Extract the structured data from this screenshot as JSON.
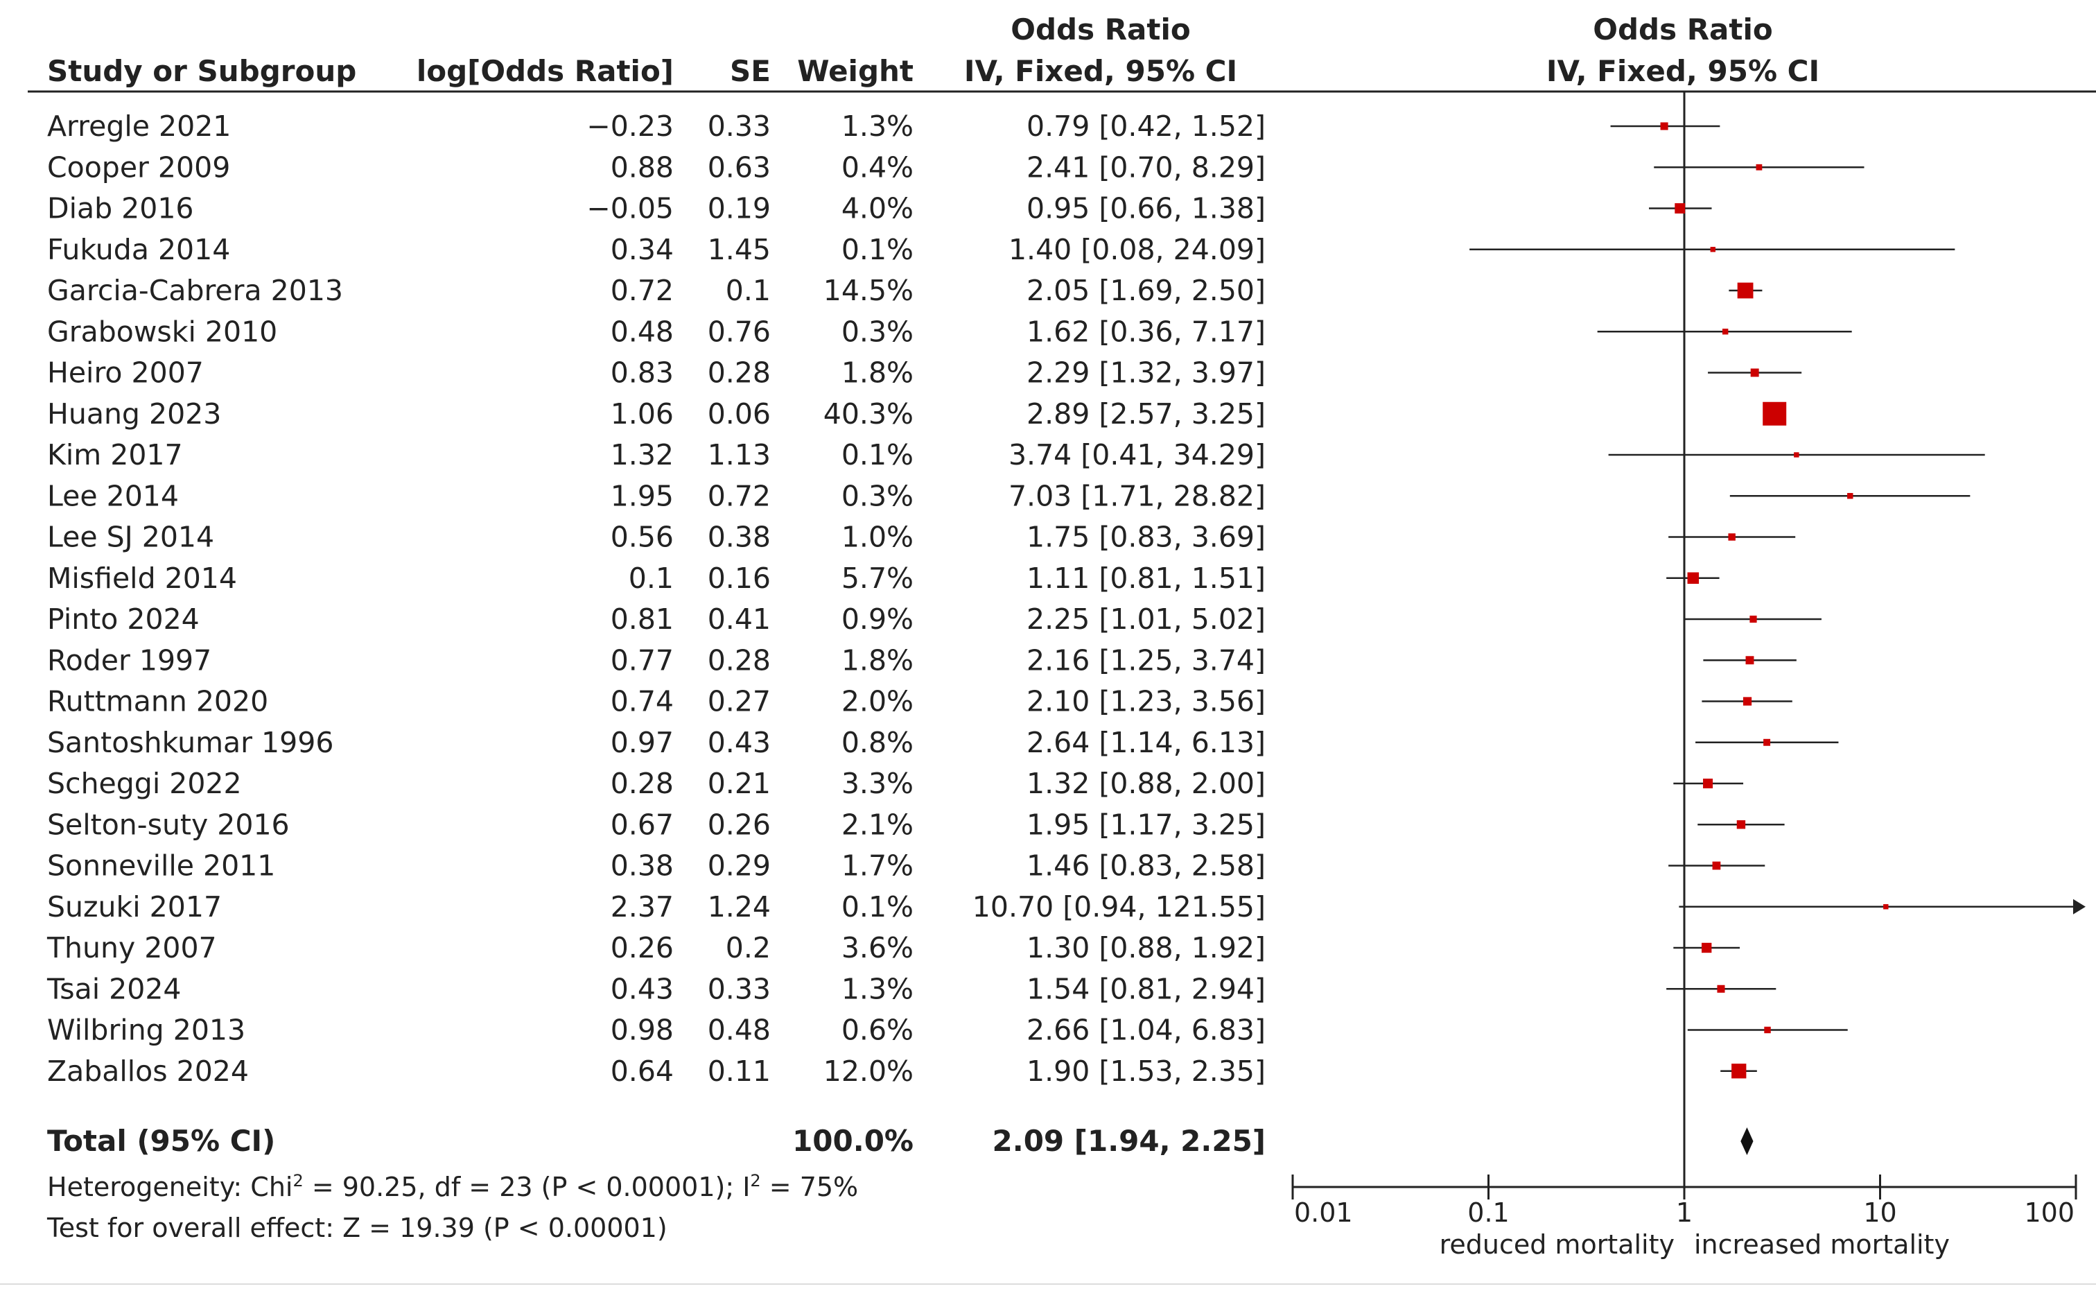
{
  "chart_data": {
    "type": "forest",
    "headers": {
      "study": "Study or Subgroup",
      "log_or": "log[Odds Ratio]",
      "se": "SE",
      "weight": "Weight",
      "or_line1": "Odds Ratio",
      "or_line2": "IV, Fixed, 95% CI",
      "plot_line1": "Odds Ratio",
      "plot_line2": "IV, Fixed, 95% CI"
    },
    "studies": [
      {
        "name": "Arregle 2021",
        "log_or": "−0.23",
        "se": "0.33",
        "weight": "1.3%",
        "or_text": "0.79 [0.42, 1.52]",
        "or": 0.79,
        "lo": 0.42,
        "hi": 1.52,
        "w": 1.3
      },
      {
        "name": "Cooper 2009",
        "log_or": "0.88",
        "se": "0.63",
        "weight": "0.4%",
        "or_text": "2.41 [0.70, 8.29]",
        "or": 2.41,
        "lo": 0.7,
        "hi": 8.29,
        "w": 0.4
      },
      {
        "name": "Diab 2016",
        "log_or": "−0.05",
        "se": "0.19",
        "weight": "4.0%",
        "or_text": "0.95 [0.66, 1.38]",
        "or": 0.95,
        "lo": 0.66,
        "hi": 1.38,
        "w": 4.0
      },
      {
        "name": "Fukuda 2014",
        "log_or": "0.34",
        "se": "1.45",
        "weight": "0.1%",
        "or_text": "1.40 [0.08, 24.09]",
        "or": 1.4,
        "lo": 0.08,
        "hi": 24.09,
        "w": 0.1
      },
      {
        "name": "Garcia-Cabrera 2013",
        "log_or": "0.72",
        "se": "0.1",
        "weight": "14.5%",
        "or_text": "2.05 [1.69, 2.50]",
        "or": 2.05,
        "lo": 1.69,
        "hi": 2.5,
        "w": 14.5
      },
      {
        "name": "Grabowski 2010",
        "log_or": "0.48",
        "se": "0.76",
        "weight": "0.3%",
        "or_text": "1.62 [0.36, 7.17]",
        "or": 1.62,
        "lo": 0.36,
        "hi": 7.17,
        "w": 0.3
      },
      {
        "name": "Heiro 2007",
        "log_or": "0.83",
        "se": "0.28",
        "weight": "1.8%",
        "or_text": "2.29 [1.32, 3.97]",
        "or": 2.29,
        "lo": 1.32,
        "hi": 3.97,
        "w": 1.8
      },
      {
        "name": "Huang 2023",
        "log_or": "1.06",
        "se": "0.06",
        "weight": "40.3%",
        "or_text": "2.89 [2.57, 3.25]",
        "or": 2.89,
        "lo": 2.57,
        "hi": 3.25,
        "w": 40.3
      },
      {
        "name": "Kim 2017",
        "log_or": "1.32",
        "se": "1.13",
        "weight": "0.1%",
        "or_text": "3.74 [0.41, 34.29]",
        "or": 3.74,
        "lo": 0.41,
        "hi": 34.29,
        "w": 0.1
      },
      {
        "name": "Lee 2014",
        "log_or": "1.95",
        "se": "0.72",
        "weight": "0.3%",
        "or_text": "7.03 [1.71, 28.82]",
        "or": 7.03,
        "lo": 1.71,
        "hi": 28.82,
        "w": 0.3
      },
      {
        "name": "Lee SJ 2014",
        "log_or": "0.56",
        "se": "0.38",
        "weight": "1.0%",
        "or_text": "1.75 [0.83, 3.69]",
        "or": 1.75,
        "lo": 0.83,
        "hi": 3.69,
        "w": 1.0
      },
      {
        "name": "Misfield 2014",
        "log_or": "0.1",
        "se": "0.16",
        "weight": "5.7%",
        "or_text": "1.11 [0.81, 1.51]",
        "or": 1.11,
        "lo": 0.81,
        "hi": 1.51,
        "w": 5.7
      },
      {
        "name": "Pinto 2024",
        "log_or": "0.81",
        "se": "0.41",
        "weight": "0.9%",
        "or_text": "2.25 [1.01, 5.02]",
        "or": 2.25,
        "lo": 1.01,
        "hi": 5.02,
        "w": 0.9
      },
      {
        "name": "Roder 1997",
        "log_or": "0.77",
        "se": "0.28",
        "weight": "1.8%",
        "or_text": "2.16 [1.25, 3.74]",
        "or": 2.16,
        "lo": 1.25,
        "hi": 3.74,
        "w": 1.8
      },
      {
        "name": "Ruttmann 2020",
        "log_or": "0.74",
        "se": "0.27",
        "weight": "2.0%",
        "or_text": "2.10 [1.23, 3.56]",
        "or": 2.1,
        "lo": 1.23,
        "hi": 3.56,
        "w": 2.0
      },
      {
        "name": "Santoshkumar 1996",
        "log_or": "0.97",
        "se": "0.43",
        "weight": "0.8%",
        "or_text": "2.64 [1.14, 6.13]",
        "or": 2.64,
        "lo": 1.14,
        "hi": 6.13,
        "w": 0.8
      },
      {
        "name": "Scheggi 2022",
        "log_or": "0.28",
        "se": "0.21",
        "weight": "3.3%",
        "or_text": "1.32 [0.88, 2.00]",
        "or": 1.32,
        "lo": 0.88,
        "hi": 2.0,
        "w": 3.3
      },
      {
        "name": "Selton-suty 2016",
        "log_or": "0.67",
        "se": "0.26",
        "weight": "2.1%",
        "or_text": "1.95 [1.17, 3.25]",
        "or": 1.95,
        "lo": 1.17,
        "hi": 3.25,
        "w": 2.1
      },
      {
        "name": "Sonneville 2011",
        "log_or": "0.38",
        "se": "0.29",
        "weight": "1.7%",
        "or_text": "1.46 [0.83, 2.58]",
        "or": 1.46,
        "lo": 0.83,
        "hi": 2.58,
        "w": 1.7
      },
      {
        "name": "Suzuki 2017",
        "log_or": "2.37",
        "se": "1.24",
        "weight": "0.1%",
        "or_text": "10.70 [0.94, 121.55]",
        "or": 10.7,
        "lo": 0.94,
        "hi": 121.55,
        "w": 0.1
      },
      {
        "name": "Thuny 2007",
        "log_or": "0.26",
        "se": "0.2",
        "weight": "3.6%",
        "or_text": "1.30 [0.88, 1.92]",
        "or": 1.3,
        "lo": 0.88,
        "hi": 1.92,
        "w": 3.6
      },
      {
        "name": "Tsai 2024",
        "log_or": "0.43",
        "se": "0.33",
        "weight": "1.3%",
        "or_text": "1.54 [0.81, 2.94]",
        "or": 1.54,
        "lo": 0.81,
        "hi": 2.94,
        "w": 1.3
      },
      {
        "name": "Wilbring 2013",
        "log_or": "0.98",
        "se": "0.48",
        "weight": "0.6%",
        "or_text": "2.66 [1.04, 6.83]",
        "or": 2.66,
        "lo": 1.04,
        "hi": 6.83,
        "w": 0.6
      },
      {
        "name": "Zaballos 2024",
        "log_or": "0.64",
        "se": "0.11",
        "weight": "12.0%",
        "or_text": "1.90 [1.53, 2.35]",
        "or": 1.9,
        "lo": 1.53,
        "hi": 2.35,
        "w": 12.0
      }
    ],
    "total": {
      "label": "Total (95% CI)",
      "weight": "100.0%",
      "or_text": "2.09 [1.94, 2.25]",
      "or": 2.09,
      "lo": 1.94,
      "hi": 2.25
    },
    "heterogeneity": {
      "prefix": "Heterogeneity: Chi",
      "sup1": "2",
      "middle": " = 90.25, df = 23 (P < 0.00001); I",
      "sup2": "2",
      "suffix": " = 75%"
    },
    "overall_effect": "Test for overall effect: Z = 19.39 (P < 0.00001)",
    "axis": {
      "scale": "log",
      "range": [
        0.01,
        100
      ],
      "ticks": [
        0.01,
        0.1,
        1,
        10,
        100
      ],
      "tick_labels": [
        "0.01",
        "0.1",
        "1",
        "10",
        "100"
      ],
      "left_label": "reduced mortality",
      "right_label": "increased mortality"
    },
    "colors": {
      "marker": "#cc0000",
      "line": "#222222",
      "diamond": "#111111"
    }
  }
}
